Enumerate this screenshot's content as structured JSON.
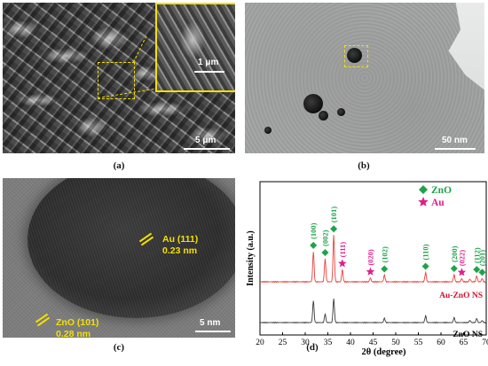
{
  "figure": {
    "captions": [
      "(a)",
      "(b)",
      "(c)",
      "(d)"
    ]
  },
  "panel_a": {
    "inset_scale_label": "1 μm",
    "scale_label": "5 μm",
    "accent_color": "#f5e000"
  },
  "panel_b": {
    "scale_label": "50 nm"
  },
  "panel_c": {
    "au_phase": "Au (111)",
    "au_spacing": "0.23 nm",
    "zno_phase": "ZnO (101)",
    "zno_spacing": "0.28 nm",
    "scale_label": "5 nm"
  },
  "chart_data": {
    "type": "line",
    "xlabel": "2θ (degree)",
    "ylabel": "Intensity (a.u.)",
    "xlim": [
      20,
      70
    ],
    "xticks": [
      20,
      25,
      30,
      35,
      40,
      45,
      50,
      55,
      60,
      65,
      70
    ],
    "grid": false,
    "legend": {
      "placement": "top-right",
      "entries": [
        {
          "symbol": "diamond",
          "label": "ZnO",
          "color": "#1fa34a"
        },
        {
          "symbol": "star",
          "label": "Au",
          "color": "#e0208c"
        }
      ]
    },
    "series": [
      {
        "name": "Au-ZnO NS",
        "color": "#e8403a",
        "peaks": [
          {
            "x": 31.8,
            "h": 0.55
          },
          {
            "x": 34.4,
            "h": 0.42
          },
          {
            "x": 36.3,
            "h": 0.85
          },
          {
            "x": 38.2,
            "h": 0.22
          },
          {
            "x": 44.4,
            "h": 0.07
          },
          {
            "x": 47.5,
            "h": 0.12
          },
          {
            "x": 56.6,
            "h": 0.17
          },
          {
            "x": 62.9,
            "h": 0.13
          },
          {
            "x": 64.6,
            "h": 0.06
          },
          {
            "x": 66.4,
            "h": 0.05
          },
          {
            "x": 67.9,
            "h": 0.11
          },
          {
            "x": 69.1,
            "h": 0.06
          }
        ]
      },
      {
        "name": "ZnO NS",
        "color": "#3a3a3a",
        "peaks": [
          {
            "x": 31.8,
            "h": 0.52
          },
          {
            "x": 34.4,
            "h": 0.2
          },
          {
            "x": 36.3,
            "h": 0.56
          },
          {
            "x": 47.5,
            "h": 0.1
          },
          {
            "x": 56.6,
            "h": 0.16
          },
          {
            "x": 62.9,
            "h": 0.12
          },
          {
            "x": 66.4,
            "h": 0.05
          },
          {
            "x": 67.9,
            "h": 0.1
          },
          {
            "x": 69.1,
            "h": 0.05
          }
        ]
      }
    ],
    "annotations": [
      {
        "x": 31.8,
        "text": "(100)",
        "marker": "diamond",
        "phase": "ZnO"
      },
      {
        "x": 34.4,
        "text": "(002)",
        "marker": "diamond",
        "phase": "ZnO"
      },
      {
        "x": 36.3,
        "text": "(101)",
        "marker": "diamond",
        "phase": "ZnO"
      },
      {
        "x": 38.2,
        "text": "(111)",
        "marker": "star",
        "phase": "Au"
      },
      {
        "x": 44.4,
        "text": "(020)",
        "marker": "star",
        "phase": "Au"
      },
      {
        "x": 47.5,
        "text": "(102)",
        "marker": "diamond",
        "phase": "ZnO"
      },
      {
        "x": 56.6,
        "text": "(110)",
        "marker": "diamond",
        "phase": "ZnO"
      },
      {
        "x": 62.9,
        "text": "(200)",
        "marker": "diamond",
        "phase": "ZnO"
      },
      {
        "x": 64.6,
        "text": "(022)",
        "marker": "star",
        "phase": "Au"
      },
      {
        "x": 67.9,
        "text": "(112)",
        "marker": "diamond",
        "phase": "ZnO"
      },
      {
        "x": 69.1,
        "text": "(201)",
        "marker": "diamond",
        "phase": "ZnO"
      }
    ]
  }
}
